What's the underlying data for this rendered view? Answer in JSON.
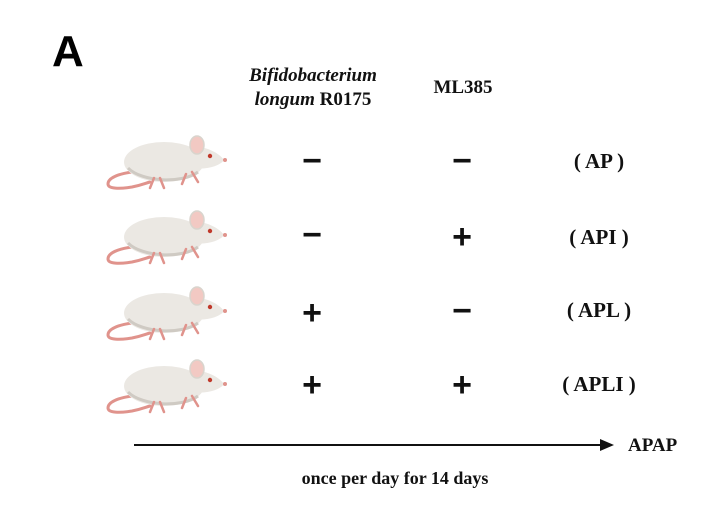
{
  "panel": {
    "letter": "A"
  },
  "headers": {
    "bifidobacterium_italic": "Bifidobacterium",
    "bifidobacterium_line2_italic": "longum",
    "bifidobacterium_line2_plain": " R0175",
    "ml385": "ML385"
  },
  "rows": [
    {
      "bifidobacterium": "−",
      "ml385": "−",
      "group": "( AP )"
    },
    {
      "bifidobacterium": "−",
      "ml385": "+",
      "group": "( API )"
    },
    {
      "bifidobacterium": "+",
      "ml385": "−",
      "group": "( APL )"
    },
    {
      "bifidobacterium": "+",
      "ml385": "+",
      "group": "( APLI )"
    }
  ],
  "timeline": {
    "arrow_label": "APAP",
    "caption": "once per day for 14 days"
  },
  "colors": {
    "mouse_body": "#ebe8e3",
    "mouse_shadow": "#cfcac3",
    "mouse_tail": "#e0938c",
    "mouse_ear": "#f2c9c3",
    "mouse_eye": "#c0392b"
  }
}
